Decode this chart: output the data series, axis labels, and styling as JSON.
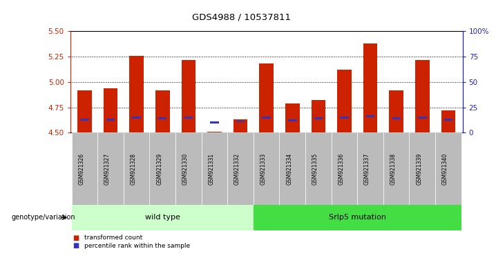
{
  "title": "GDS4988 / 10537811",
  "samples": [
    "GSM921326",
    "GSM921327",
    "GSM921328",
    "GSM921329",
    "GSM921330",
    "GSM921331",
    "GSM921332",
    "GSM921333",
    "GSM921334",
    "GSM921335",
    "GSM921336",
    "GSM921337",
    "GSM921338",
    "GSM921339",
    "GSM921340"
  ],
  "red_values": [
    4.92,
    4.94,
    5.26,
    4.92,
    5.22,
    4.51,
    4.63,
    5.18,
    4.79,
    4.82,
    5.12,
    5.38,
    4.92,
    5.22,
    4.72
  ],
  "blue_percentile": [
    13,
    13,
    15,
    14,
    15,
    10,
    11,
    15,
    12,
    14,
    15,
    16,
    14,
    15,
    13
  ],
  "ymin": 4.5,
  "ymax": 5.5,
  "yticks_left": [
    4.5,
    4.75,
    5.0,
    5.25,
    5.5
  ],
  "yticks_right": [
    0,
    25,
    50,
    75,
    100
  ],
  "dotted_lines": [
    4.75,
    5.0,
    5.25
  ],
  "n_wild": 7,
  "n_mut": 8,
  "wild_type_label": "wild type",
  "mutation_label": "Srlp5 mutation",
  "genotype_label": "genotype/variation",
  "legend_red": "transformed count",
  "legend_blue": "percentile rank within the sample",
  "bar_color_red": "#CC2200",
  "bar_color_blue": "#3333BB",
  "bar_width": 0.55,
  "group_bg_wt": "#CCFFCC",
  "group_bg_mut": "#44DD44",
  "left_axis_color": "#CC2200",
  "right_axis_color": "#2222BB",
  "xtick_bg": "#BBBBBB"
}
